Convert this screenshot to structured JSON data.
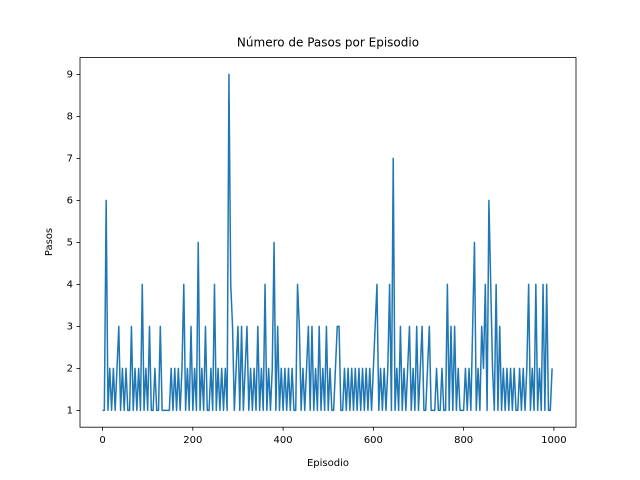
{
  "chart_data": {
    "type": "line",
    "title": "Número de Pasos por Episodio",
    "x_label": "Episodio",
    "y_label": "Pasos",
    "xlim": [
      -49.95,
      1048.95
    ],
    "ylim": [
      0.6,
      9.4
    ],
    "xticks": [
      0,
      200,
      400,
      600,
      800,
      1000
    ],
    "yticks": [
      1,
      2,
      3,
      4,
      5,
      6,
      7,
      8,
      9
    ],
    "x": [
      0,
      4,
      8,
      12,
      16,
      20,
      24,
      28,
      32,
      36,
      40,
      44,
      48,
      52,
      56,
      60,
      64,
      68,
      72,
      76,
      80,
      84,
      88,
      92,
      96,
      100,
      104,
      108,
      112,
      116,
      120,
      124,
      128,
      132,
      136,
      140,
      144,
      148,
      152,
      156,
      160,
      164,
      168,
      172,
      176,
      180,
      184,
      188,
      192,
      196,
      200,
      204,
      208,
      212,
      216,
      220,
      224,
      228,
      232,
      236,
      240,
      244,
      248,
      252,
      256,
      260,
      264,
      268,
      272,
      276,
      280,
      284,
      288,
      292,
      296,
      300,
      304,
      308,
      312,
      316,
      320,
      324,
      328,
      332,
      336,
      340,
      344,
      348,
      352,
      356,
      360,
      364,
      368,
      372,
      376,
      380,
      384,
      388,
      392,
      396,
      400,
      404,
      408,
      412,
      416,
      420,
      424,
      428,
      432,
      436,
      440,
      444,
      448,
      452,
      456,
      460,
      464,
      468,
      472,
      476,
      480,
      484,
      488,
      492,
      496,
      500,
      504,
      508,
      512,
      516,
      520,
      524,
      528,
      532,
      536,
      540,
      544,
      548,
      552,
      556,
      560,
      564,
      568,
      572,
      576,
      580,
      584,
      588,
      592,
      596,
      600,
      604,
      608,
      612,
      616,
      620,
      624,
      628,
      632,
      636,
      640,
      644,
      648,
      652,
      656,
      660,
      664,
      668,
      672,
      676,
      680,
      684,
      688,
      692,
      696,
      700,
      704,
      708,
      712,
      716,
      720,
      724,
      728,
      732,
      736,
      740,
      744,
      748,
      752,
      756,
      760,
      764,
      768,
      772,
      776,
      780,
      784,
      788,
      792,
      796,
      800,
      804,
      808,
      812,
      816,
      820,
      824,
      828,
      832,
      836,
      840,
      844,
      848,
      852,
      856,
      860,
      864,
      868,
      872,
      876,
      880,
      884,
      888,
      892,
      896,
      900,
      904,
      908,
      912,
      916,
      920,
      924,
      928,
      932,
      936,
      940,
      944,
      948,
      952,
      956,
      960,
      964,
      968,
      972,
      976,
      980,
      984,
      988,
      992,
      996
    ],
    "series": [
      {
        "color": "#1f77b4",
        "values": [
          1,
          1,
          6,
          1,
          2,
          1,
          2,
          1,
          2,
          3,
          1,
          2,
          1,
          2,
          1,
          1,
          3,
          1,
          2,
          1,
          2,
          1,
          4,
          1,
          2,
          1,
          3,
          1,
          1,
          2,
          1,
          1,
          3,
          1,
          1,
          1,
          1,
          1,
          2,
          1,
          2,
          1,
          2,
          1,
          2,
          4,
          1,
          2,
          1,
          3,
          1,
          2,
          1,
          5,
          1,
          2,
          1,
          3,
          1,
          1,
          2,
          1,
          4,
          1,
          2,
          1,
          2,
          1,
          2,
          1,
          9,
          4,
          3,
          1,
          2,
          3,
          1,
          3,
          1,
          2,
          3,
          1,
          2,
          1,
          2,
          1,
          3,
          1,
          2,
          1,
          4,
          1,
          2,
          1,
          2,
          5,
          1,
          3,
          1,
          2,
          1,
          2,
          1,
          2,
          1,
          2,
          1,
          1,
          4,
          3,
          1,
          2,
          1,
          2,
          3,
          1,
          3,
          1,
          2,
          1,
          3,
          1,
          2,
          1,
          3,
          1,
          2,
          1,
          1,
          2,
          3,
          3,
          1,
          1,
          2,
          1,
          2,
          1,
          2,
          1,
          2,
          1,
          2,
          1,
          2,
          1,
          2,
          1,
          2,
          1,
          2,
          3,
          4,
          1,
          2,
          1,
          2,
          1,
          2,
          4,
          1,
          7,
          1,
          2,
          1,
          3,
          1,
          2,
          1,
          2,
          3,
          1,
          2,
          1,
          3,
          1,
          2,
          3,
          1,
          1,
          2,
          3,
          1,
          1,
          1,
          2,
          1,
          1,
          2,
          1,
          1,
          4,
          1,
          3,
          1,
          3,
          1,
          2,
          1,
          1,
          1,
          2,
          1,
          2,
          1,
          3,
          5,
          1,
          2,
          1,
          3,
          2,
          4,
          1,
          6,
          4,
          2,
          1,
          4,
          1,
          3,
          1,
          2,
          1,
          2,
          1,
          2,
          1,
          2,
          1,
          1,
          2,
          1,
          2,
          1,
          2,
          4,
          1,
          2,
          1,
          4,
          1,
          2,
          1,
          4,
          1,
          4,
          1,
          1,
          2
        ]
      }
    ]
  }
}
